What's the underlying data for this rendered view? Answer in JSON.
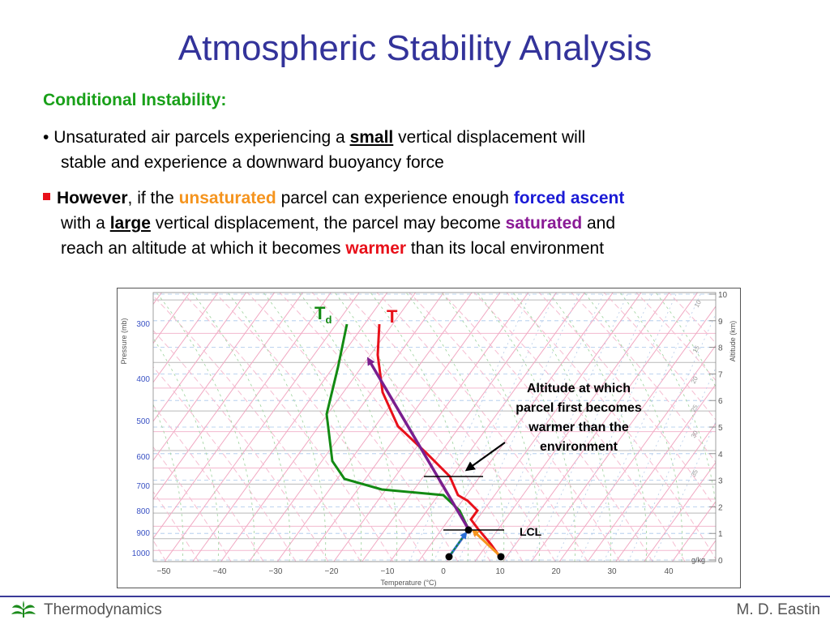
{
  "slide": {
    "title": "Atmospheric Stability Analysis",
    "heading": "Conditional Instability:",
    "p1": {
      "bullet": "•",
      "t1": " Unsaturated air parcels experiencing a ",
      "t2": "small",
      "t3": " vertical displacement will",
      "line2": "stable and experience a downward buoyancy force"
    },
    "p2": {
      "t1": "However",
      "t2": ", if the ",
      "t3": "unsaturated",
      "t4": " parcel can experience enough ",
      "t5": "forced ascent",
      "t6": "with a ",
      "t7": "large",
      "t8": " vertical displacement, the parcel may become ",
      "t9": "saturated",
      "t10": " and",
      "t11": "reach an altitude at which it becomes ",
      "t12": "warmer",
      "t13": " than its local environment"
    }
  },
  "chart_data": {
    "type": "skew-t diagram",
    "xlabel": "Temperature (°C)",
    "ylabel": "Pressure (mb)",
    "y2label": "Altitude (km)",
    "x_ticks": [
      "−50",
      "−40",
      "−30",
      "−20",
      "−10",
      "0",
      "10",
      "20",
      "30",
      "40"
    ],
    "y_ticks": [
      "300",
      "400",
      "500",
      "600",
      "700",
      "800",
      "900",
      "1000"
    ],
    "y2_ticks": [
      "0",
      "1",
      "2",
      "3",
      "4",
      "5",
      "6",
      "7",
      "8",
      "9",
      "10"
    ],
    "mixing_ratio_labels": [
      "10",
      "15",
      "20",
      "25",
      "30",
      "35",
      "40",
      "45"
    ],
    "mixing_ratio_unit": "g/kg",
    "series": [
      {
        "name": "T",
        "color": "#e8101a"
      },
      {
        "name": "Td",
        "color": "#138a13"
      }
    ],
    "legend": {
      "T": "T",
      "Td_main": "T",
      "Td_sub": "d"
    },
    "annotations": {
      "callout": [
        "Altitude at which",
        "parcel first becomes",
        "warmer than the",
        "environment"
      ],
      "lcl": "LCL"
    },
    "colors": {
      "parcel": "#7a1e8e",
      "dry_adiabat_arrow": "#f5941e",
      "dewpoint_arrow": "#2a6fd6"
    }
  },
  "footer": {
    "left": "Thermodynamics",
    "right": "M. D. Eastin",
    "logo_icon": "plant-logo-icon"
  }
}
